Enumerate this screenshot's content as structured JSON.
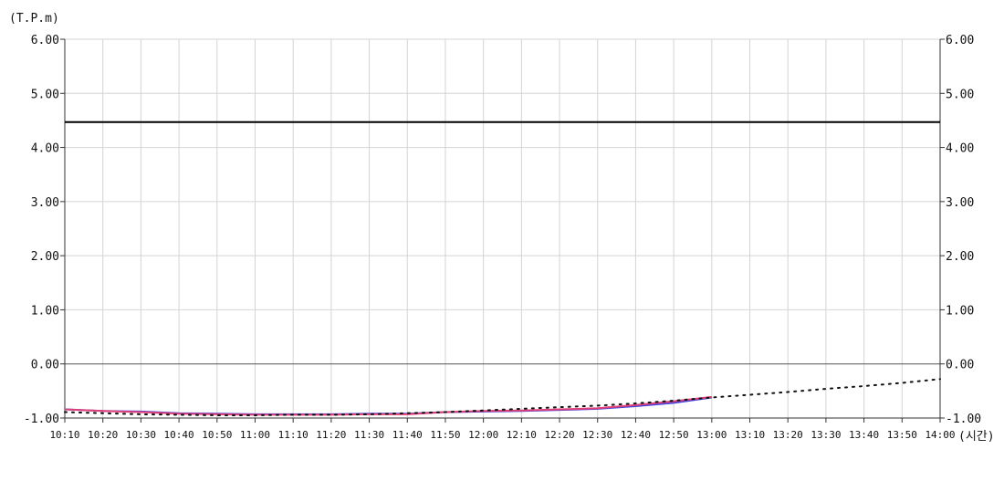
{
  "chart_data": {
    "type": "line",
    "title": "",
    "ylabel": "(T.P.m)",
    "xlabel": "(시간)",
    "ylim": [
      -1.0,
      6.0
    ],
    "y_ticks": [
      "6.00",
      "5.00",
      "4.00",
      "3.00",
      "2.00",
      "1.00",
      "0.00",
      "-1.00"
    ],
    "y_tick_values": [
      6,
      5,
      4,
      3,
      2,
      1,
      0,
      -1
    ],
    "x_ticks": [
      "10:10",
      "10:20",
      "10:30",
      "10:40",
      "10:50",
      "11:00",
      "11:10",
      "11:20",
      "11:30",
      "11:40",
      "11:50",
      "12:00",
      "12:10",
      "12:20",
      "12:30",
      "12:40",
      "12:50",
      "13:00",
      "13:10",
      "13:20",
      "13:30",
      "13:40",
      "13:50",
      "14:00"
    ],
    "grid": true,
    "reference_lines": [
      {
        "y": 4.47,
        "color": "#000000"
      }
    ],
    "series": [
      {
        "color": "#4444dd",
        "x": [
          "10:10",
          "10:20",
          "10:30",
          "10:40",
          "10:50",
          "11:00",
          "11:10",
          "11:20",
          "11:30",
          "11:40",
          "11:50",
          "12:00",
          "12:10",
          "12:20",
          "12:30",
          "12:40",
          "12:50",
          "13:00"
        ],
        "values": [
          -0.84,
          -0.87,
          -0.88,
          -0.91,
          -0.92,
          -0.93,
          -0.93,
          -0.93,
          -0.92,
          -0.92,
          -0.89,
          -0.88,
          -0.87,
          -0.85,
          -0.83,
          -0.78,
          -0.72,
          -0.62
        ]
      },
      {
        "color": "#e0407a",
        "x": [
          "10:10",
          "10:20",
          "10:30",
          "10:40",
          "10:50",
          "11:00",
          "11:10",
          "11:20",
          "11:30",
          "11:40",
          "11:50",
          "12:00",
          "12:10",
          "12:20",
          "12:30",
          "12:40",
          "12:50",
          "13:00"
        ],
        "values": [
          -0.84,
          -0.87,
          -0.89,
          -0.92,
          -0.93,
          -0.94,
          -0.94,
          -0.94,
          -0.93,
          -0.93,
          -0.89,
          -0.87,
          -0.86,
          -0.84,
          -0.82,
          -0.76,
          -0.69,
          -0.61
        ]
      },
      {
        "color": "#111111",
        "dotted": true,
        "x": [
          "10:10",
          "10:20",
          "10:30",
          "10:40",
          "10:50",
          "11:00",
          "11:10",
          "11:20",
          "11:30",
          "11:40",
          "11:50",
          "12:00",
          "12:10",
          "12:20",
          "12:30",
          "12:40",
          "12:50",
          "13:00",
          "13:10",
          "13:20",
          "13:30",
          "13:40",
          "13:50",
          "14:00"
        ],
        "values": [
          -0.89,
          -0.91,
          -0.93,
          -0.94,
          -0.95,
          -0.95,
          -0.94,
          -0.94,
          -0.93,
          -0.91,
          -0.89,
          -0.86,
          -0.83,
          -0.8,
          -0.77,
          -0.73,
          -0.68,
          -0.62,
          -0.57,
          -0.52,
          -0.46,
          -0.41,
          -0.35,
          -0.28
        ]
      }
    ]
  }
}
